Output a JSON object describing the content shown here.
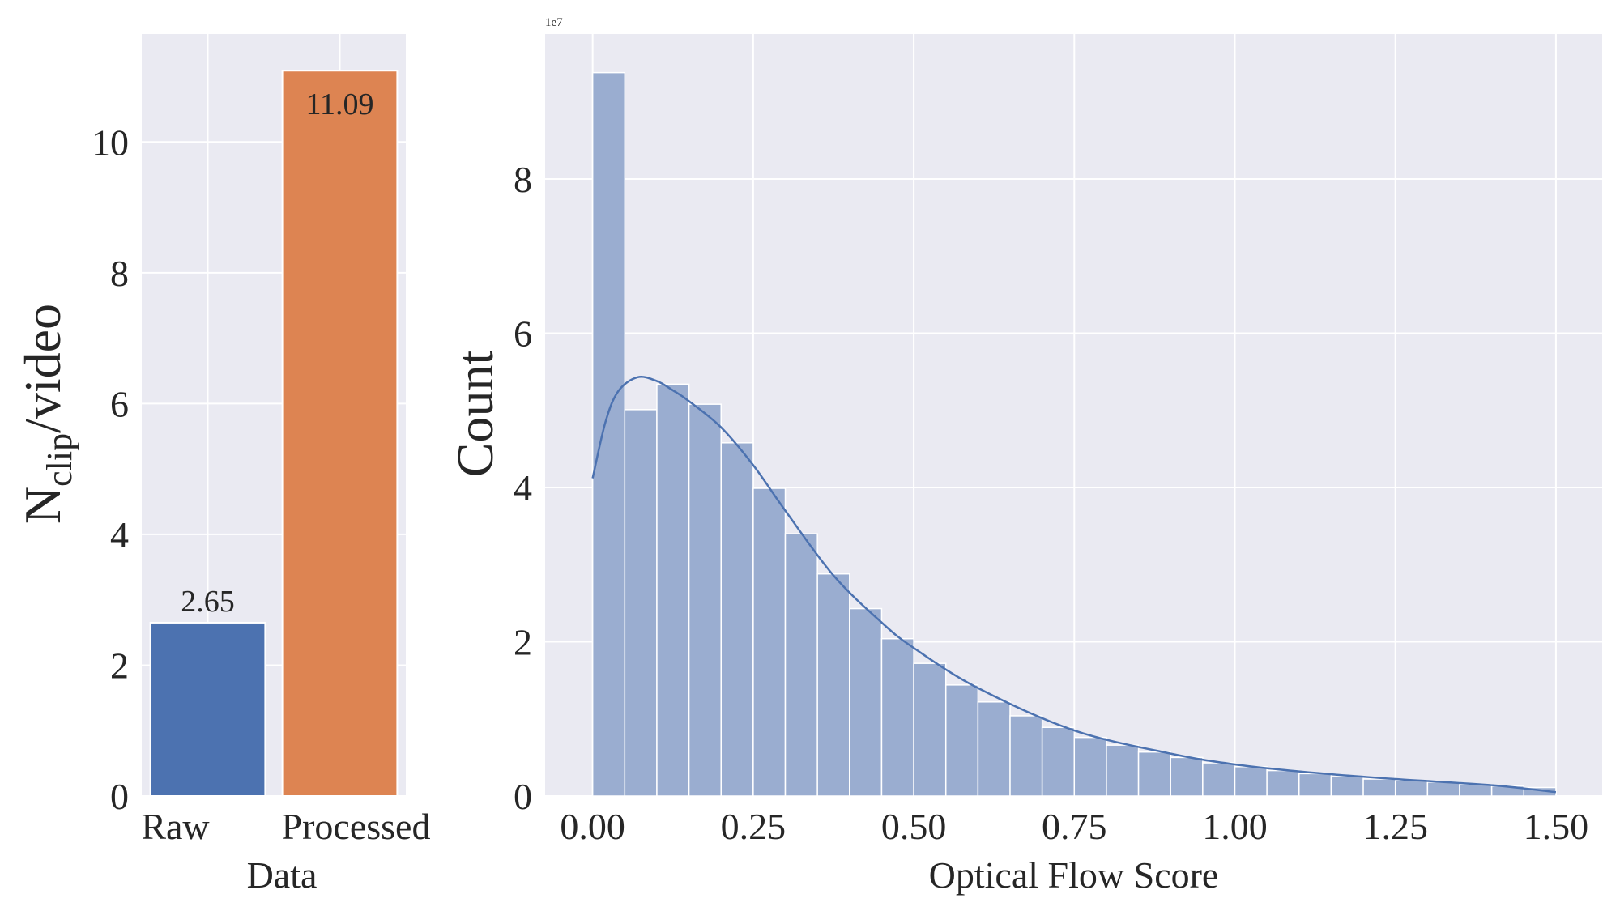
{
  "chart_data": [
    {
      "type": "bar",
      "categories": [
        "Raw",
        "Processed"
      ],
      "values": [
        2.65,
        11.09
      ],
      "data_labels": [
        "2.65",
        "11.09"
      ],
      "colors": [
        "#4c72b0",
        "#dd8452"
      ],
      "xlabel": "Data",
      "ylabel_main": "N",
      "ylabel_sub": "clip",
      "ylabel_tail": "/video",
      "ylim": [
        0,
        11.65
      ],
      "yticks": [
        0,
        2,
        4,
        6,
        8,
        10
      ],
      "ytick_labels": [
        "0",
        "2",
        "4",
        "6",
        "8",
        "10"
      ],
      "grid": true,
      "background": "#eaeaf2"
    },
    {
      "type": "bar",
      "subtype": "histogram with kde line",
      "xlabel": "Optical Flow Score",
      "ylabel": "Count",
      "offset_text": "1e7",
      "y_multiplier": 10000000,
      "bin_width": 0.05,
      "bin_starts": [
        0.0,
        0.05,
        0.1,
        0.15,
        0.2,
        0.25,
        0.3,
        0.35,
        0.4,
        0.45,
        0.5,
        0.55,
        0.6,
        0.65,
        0.7,
        0.75,
        0.8,
        0.85,
        0.9,
        0.95,
        1.0,
        1.05,
        1.1,
        1.15,
        1.2,
        1.25,
        1.3,
        1.35,
        1.4,
        1.45
      ],
      "values": [
        9.38,
        5.01,
        5.34,
        5.08,
        4.58,
        3.99,
        3.4,
        2.88,
        2.43,
        2.04,
        1.72,
        1.44,
        1.22,
        1.04,
        0.89,
        0.76,
        0.66,
        0.57,
        0.5,
        0.43,
        0.38,
        0.33,
        0.29,
        0.25,
        0.22,
        0.2,
        0.18,
        0.15,
        0.13,
        0.11
      ],
      "kde": {
        "x": [
          0.0,
          0.02,
          0.04,
          0.07,
          0.1,
          0.125,
          0.15,
          0.2,
          0.25,
          0.3,
          0.375,
          0.45,
          0.5,
          0.6,
          0.75,
          0.9,
          1.0,
          1.125,
          1.25,
          1.4,
          1.5
        ],
        "y": [
          4.12,
          4.85,
          5.25,
          5.43,
          5.38,
          5.26,
          5.12,
          4.78,
          4.29,
          3.7,
          2.86,
          2.25,
          1.92,
          1.4,
          0.85,
          0.55,
          0.41,
          0.3,
          0.22,
          0.14,
          0.05
        ]
      },
      "bar_color": "#9aadd0",
      "line_color": "#4c72b0",
      "xlim": [
        -0.074,
        1.572
      ],
      "ylim": [
        0,
        9.88
      ],
      "xticks": [
        0,
        0.25,
        0.5,
        0.75,
        1.0,
        1.25,
        1.5
      ],
      "xtick_labels": [
        "0.00",
        "0.25",
        "0.50",
        "0.75",
        "1.00",
        "1.25",
        "1.50"
      ],
      "yticks": [
        0,
        2,
        4,
        6,
        8
      ],
      "ytick_labels": [
        "0",
        "2",
        "4",
        "6",
        "8"
      ],
      "grid": true,
      "background": "#eaeaf2"
    }
  ]
}
